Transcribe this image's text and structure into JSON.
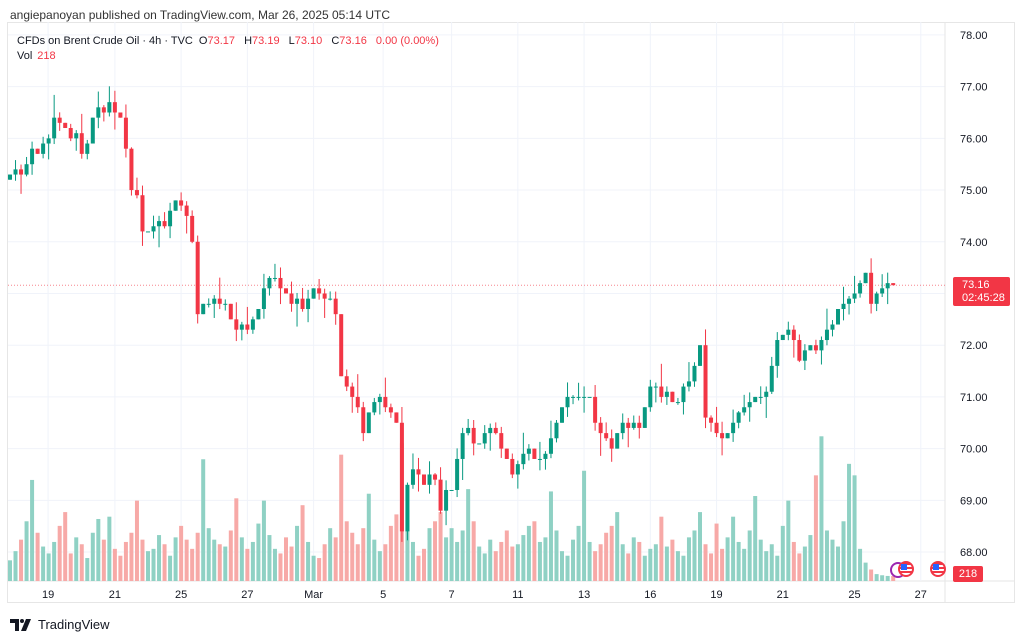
{
  "publisher_line": "angiepanoyan published on TradingView.com, Mar 26, 2025 05:14 UTC",
  "legend": {
    "symbol": "CFDs on Brent Crude Oil · 4h · TVC",
    "o_label": "O",
    "o": "73.17",
    "h_label": "H",
    "h": "73.19",
    "l_label": "L",
    "l": "73.10",
    "c_label": "C",
    "c": "73.16",
    "change": "0.00 (0.00%)",
    "vol_label": "Vol",
    "vol": "218"
  },
  "price_badge": {
    "price": "73.16",
    "countdown": "02:45:28"
  },
  "volume_badge": "218",
  "footer": {
    "brand": "TradingView"
  },
  "colors": {
    "up": "#089981",
    "down": "#f23645",
    "vol_up": "#8fd1c4",
    "vol_down": "#f7a9a7",
    "grid": "#f0f3fa"
  },
  "chart_data": {
    "type": "candlestick",
    "title": "CFDs on Brent Crude Oil · 4h · TVC",
    "ylim": [
      67.44,
      78.25
    ],
    "y_ticks": [
      "68.00",
      "69.00",
      "70.00",
      "71.00",
      "72.00",
      "73.00",
      "74.00",
      "75.00",
      "76.00",
      "77.00",
      "78.00"
    ],
    "x_ticks": [
      {
        "label": "19",
        "index": 6.9
      },
      {
        "label": "21",
        "index": 19
      },
      {
        "label": "25",
        "index": 31
      },
      {
        "label": "27",
        "index": 43
      },
      {
        "label": "Mar",
        "index": 55
      },
      {
        "label": "5",
        "index": 67.6
      },
      {
        "label": "7",
        "index": 80
      },
      {
        "label": "11",
        "index": 92
      },
      {
        "label": "13",
        "index": 104
      },
      {
        "label": "16",
        "index": 116
      },
      {
        "label": "19",
        "index": 128
      },
      {
        "label": "21",
        "index": 140
      },
      {
        "label": "25",
        "index": 153
      },
      {
        "label": "27",
        "index": 165
      }
    ],
    "x_index_range": [
      0,
      169
    ],
    "first_open": 75.2,
    "closes": [
      75.3,
      75.4,
      75.3,
      75.5,
      75.8,
      75.7,
      75.9,
      76.0,
      76.4,
      76.3,
      76.2,
      76.0,
      76.1,
      75.7,
      75.9,
      76.4,
      76.6,
      76.5,
      76.7,
      76.5,
      76.4,
      75.8,
      75.0,
      74.9,
      74.2,
      74.2,
      74.3,
      74.4,
      74.3,
      74.6,
      74.8,
      74.7,
      74.5,
      74.0,
      72.6,
      72.8,
      72.8,
      72.9,
      72.8,
      72.8,
      72.5,
      72.3,
      72.4,
      72.3,
      72.5,
      72.7,
      73.1,
      73.3,
      73.3,
      73.1,
      73.0,
      72.8,
      72.9,
      72.7,
      72.9,
      73.1,
      73.0,
      72.9,
      72.9,
      72.6,
      71.4,
      71.2,
      71.0,
      70.8,
      70.3,
      70.7,
      70.9,
      71.0,
      70.8,
      70.7,
      70.5,
      68.4,
      69.3,
      69.6,
      69.5,
      69.3,
      69.5,
      69.4,
      68.8,
      69.2,
      69.2,
      69.8,
      70.3,
      70.4,
      70.1,
      70.1,
      70.3,
      70.4,
      70.3,
      70.0,
      69.8,
      69.5,
      69.7,
      69.9,
      70.0,
      69.8,
      69.8,
      69.9,
      70.2,
      70.5,
      70.8,
      71.0,
      71.0,
      71.0,
      71.0,
      71.0,
      70.5,
      70.3,
      70.2,
      70.0,
      70.3,
      70.5,
      70.4,
      70.5,
      70.4,
      70.8,
      71.2,
      71.2,
      71.0,
      71.1,
      70.9,
      70.9,
      71.2,
      71.3,
      71.6,
      72.0,
      70.6,
      70.5,
      70.3,
      70.2,
      70.3,
      70.5,
      70.7,
      70.8,
      70.9,
      71.0,
      71.0,
      71.1,
      71.6,
      72.1,
      72.2,
      72.3,
      72.1,
      71.7,
      71.9,
      72.0,
      71.9,
      72.1,
      72.3,
      72.4,
      72.7,
      72.8,
      72.9,
      73.0,
      73.2,
      73.4,
      72.8,
      73.0,
      73.1,
      73.2,
      73.16
    ],
    "volumes": [
      900,
      1300,
      1800,
      2600,
      4400,
      2100,
      1500,
      1200,
      1700,
      2400,
      3000,
      1200,
      1900,
      1600,
      1000,
      2100,
      2700,
      1800,
      2800,
      1400,
      1100,
      1700,
      2100,
      3500,
      1800,
      1300,
      1400,
      2000,
      1600,
      1100,
      1900,
      2400,
      1800,
      1400,
      2100,
      5300,
      2300,
      1800,
      1600,
      1500,
      2200,
      3600,
      1900,
      1400,
      1700,
      2500,
      3500,
      2000,
      1400,
      1200,
      1900,
      1500,
      2400,
      3300,
      1700,
      1100,
      1000,
      1600,
      2300,
      1900,
      5500,
      2600,
      2100,
      1600,
      2300,
      3800,
      1800,
      1300,
      1600,
      2400,
      2900,
      6000,
      3100,
      1700,
      1100,
      1400,
      2300,
      2600,
      3000,
      1900,
      2300,
      1700,
      2200,
      4000,
      2600,
      1500,
      1200,
      1800,
      1300,
      1700,
      2200,
      1500,
      1600,
      2000,
      2400,
      2600,
      1700,
      1900,
      3900,
      2200,
      1300,
      1100,
      1800,
      2400,
      4800,
      1700,
      1300,
      1600,
      2100,
      2400,
      3000,
      1600,
      1200,
      1900,
      1700,
      1100,
      1400,
      1600,
      2800,
      1500,
      1800,
      1300,
      1100,
      1900,
      2200,
      3000,
      1600,
      1200,
      2500,
      1400,
      1900,
      2800,
      1700,
      1400,
      2200,
      3700,
      1800,
      1300,
      1600,
      1100,
      2400,
      3500,
      1700,
      1200,
      1500,
      2000,
      4600,
      6300,
      2200,
      1800,
      1500,
      2600,
      5100,
      4600,
      1400,
      800,
      500,
      300,
      250,
      220,
      218
    ]
  }
}
